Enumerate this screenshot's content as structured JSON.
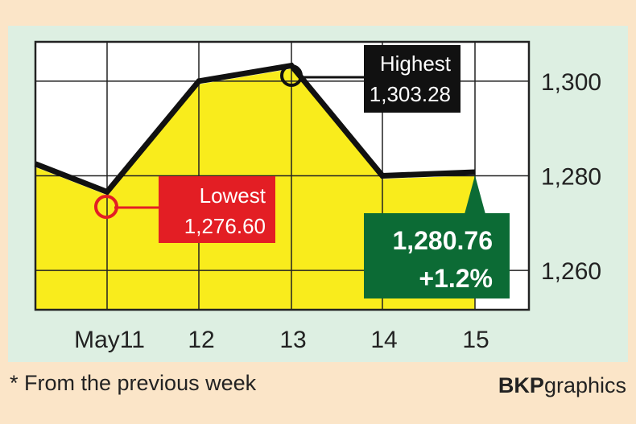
{
  "chart_data": {
    "type": "line",
    "categories": [
      "",
      "May11",
      "12",
      "13",
      "14",
      "15"
    ],
    "values": [
      1282.5,
      1276.6,
      1300.0,
      1303.28,
      1280.0,
      1280.76
    ],
    "ylim": [
      1251.7,
      1308.3
    ],
    "yticks": [
      1260,
      1280,
      1300
    ],
    "ytick_labels": [
      "1,260",
      "1,280",
      "1,300"
    ],
    "grid": true,
    "annotations": {
      "highest": {
        "label": "Highest",
        "value": "1,303.28"
      },
      "lowest": {
        "label": "Lowest",
        "value": "1,276.60"
      },
      "latest": {
        "value": "1,280.76",
        "change": "+1.2%"
      }
    }
  },
  "footnote": "* From the previous week",
  "credit": {
    "bold": "BKP",
    "rest": "graphics"
  },
  "colors": {
    "fill": "#f9ec1c",
    "line": "#111111",
    "low": "#e31e24",
    "high": "#111111",
    "latest": "#0c6b35",
    "panel": "#ddefe2"
  }
}
